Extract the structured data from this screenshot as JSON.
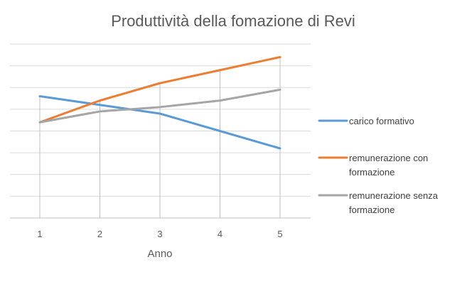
{
  "chart_data": {
    "type": "line",
    "title": "Produttività della fomazione di Revi",
    "xlabel": "Anno",
    "ylabel": "",
    "categories": [
      "1",
      "2",
      "3",
      "4",
      "5"
    ],
    "ylim": [
      0,
      8
    ],
    "grid": true,
    "legend_position": "right",
    "series": [
      {
        "name": "carico formativo",
        "color": "#5B9BD5",
        "values": [
          5.6,
          5.2,
          4.8,
          4.0,
          3.2
        ]
      },
      {
        "name": "remunerazione con formazione",
        "color": "#ED7D31",
        "values": [
          4.4,
          5.4,
          6.2,
          6.8,
          7.4
        ]
      },
      {
        "name": "remunerazione senza formazione",
        "color": "#A5A5A5",
        "values": [
          4.4,
          4.9,
          5.1,
          5.4,
          5.9
        ]
      }
    ],
    "legend_lines": [
      [
        "carico formativo"
      ],
      [
        "remunerazione con",
        "formazione"
      ],
      [
        "remunerazione senza",
        "formazione"
      ]
    ]
  }
}
